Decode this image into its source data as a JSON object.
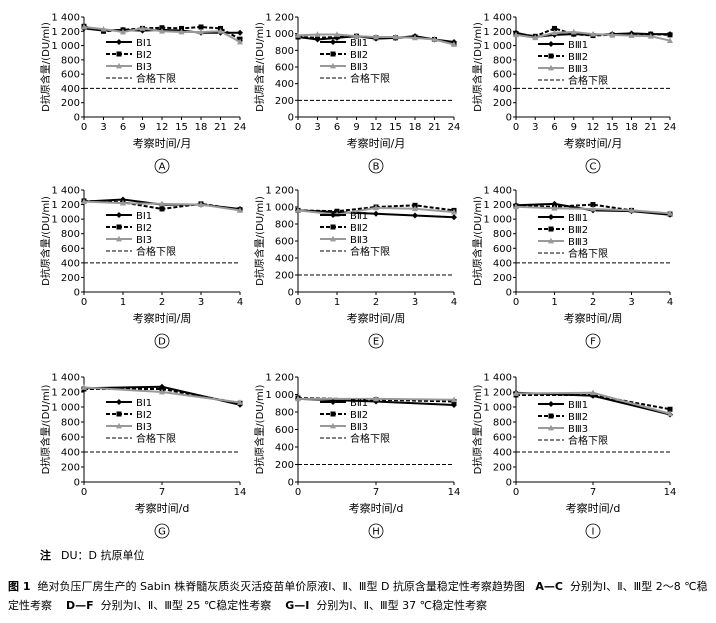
{
  "chart_data": [
    {
      "panel": "A",
      "type": "line",
      "ylabel": "D抗原含量/(DU/ml)",
      "xlabel": "考察时间/月",
      "x": [
        0,
        3,
        6,
        9,
        12,
        15,
        18,
        21,
        24
      ],
      "xticks": [
        0,
        3,
        6,
        9,
        12,
        15,
        18,
        21,
        24
      ],
      "ylim": [
        0,
        1400
      ],
      "yticks": [
        0,
        200,
        400,
        600,
        800,
        1000,
        1200,
        1400
      ],
      "limit": 400,
      "series": [
        {
          "name": "BⅠ1",
          "style": "solid",
          "marker": "diamond",
          "values": [
            1240,
            1210,
            1220,
            1210,
            1220,
            1210,
            1180,
            1180,
            1180
          ]
        },
        {
          "name": "BⅠ2",
          "style": "dashed",
          "marker": "square",
          "values": [
            1270,
            1200,
            1220,
            1240,
            1250,
            1240,
            1260,
            1240,
            1090
          ]
        },
        {
          "name": "BⅠ3",
          "style": "gray",
          "marker": "triangle",
          "values": [
            1260,
            1230,
            1190,
            1240,
            1200,
            1190,
            1190,
            1200,
            1050
          ]
        },
        {
          "name": "合格下限",
          "style": "limit"
        }
      ]
    },
    {
      "panel": "B",
      "type": "line",
      "ylabel": "D抗原含量/(DU/ml)",
      "xlabel": "考察时间/月",
      "x": [
        0,
        3,
        6,
        9,
        12,
        15,
        18,
        21,
        24
      ],
      "xticks": [
        0,
        3,
        6,
        9,
        12,
        15,
        18,
        21,
        24
      ],
      "ylim": [
        0,
        1200
      ],
      "yticks": [
        0,
        200,
        400,
        600,
        800,
        1000,
        1200
      ],
      "limit": 200,
      "series": [
        {
          "name": "BⅡ1",
          "style": "solid",
          "marker": "diamond",
          "values": [
            960,
            930,
            950,
            970,
            940,
            950,
            970,
            930,
            900
          ]
        },
        {
          "name": "BⅡ2",
          "style": "dashed",
          "marker": "square",
          "values": [
            960,
            950,
            960,
            970,
            950,
            950,
            960,
            930,
            880
          ]
        },
        {
          "name": "BⅡ3",
          "style": "gray",
          "marker": "triangle",
          "values": [
            980,
            990,
            990,
            970,
            960,
            960,
            950,
            930,
            870
          ]
        },
        {
          "name": "合格下限",
          "style": "limit"
        }
      ]
    },
    {
      "panel": "C",
      "type": "line",
      "ylabel": "D抗原含量/(DU/ml)",
      "xlabel": "考察时间/月",
      "x": [
        0,
        3,
        6,
        9,
        12,
        15,
        18,
        21,
        24
      ],
      "xticks": [
        0,
        3,
        6,
        9,
        12,
        15,
        18,
        21,
        24
      ],
      "ylim": [
        0,
        1400
      ],
      "yticks": [
        0,
        200,
        400,
        600,
        800,
        1000,
        1200,
        1400
      ],
      "limit": 400,
      "series": [
        {
          "name": "BⅢ1",
          "style": "solid",
          "marker": "diamond",
          "values": [
            1180,
            1120,
            1150,
            1160,
            1150,
            1160,
            1170,
            1160,
            1160
          ]
        },
        {
          "name": "BⅢ2",
          "style": "dashed",
          "marker": "square",
          "values": [
            1170,
            1130,
            1240,
            1160,
            1140,
            1150,
            1150,
            1160,
            1150
          ]
        },
        {
          "name": "BⅢ3",
          "style": "gray",
          "marker": "triangle",
          "values": [
            1150,
            1110,
            1180,
            1190,
            1160,
            1150,
            1140,
            1130,
            1070
          ]
        },
        {
          "name": "合格下限",
          "style": "limit"
        }
      ]
    },
    {
      "panel": "D",
      "type": "line",
      "ylabel": "D抗原含量/(DU/ml)",
      "xlabel": "考察时间/周",
      "x": [
        0,
        1,
        2,
        3,
        4
      ],
      "xticks": [
        0,
        1,
        2,
        3,
        4
      ],
      "ylim": [
        0,
        1400
      ],
      "yticks": [
        0,
        200,
        400,
        600,
        800,
        1000,
        1200,
        1400
      ],
      "limit": 400,
      "series": [
        {
          "name": "BⅠ1",
          "style": "solid",
          "marker": "diamond",
          "values": [
            1240,
            1270,
            1200,
            1200,
            1140
          ]
        },
        {
          "name": "BⅠ2",
          "style": "dashed",
          "marker": "square",
          "values": [
            1250,
            1230,
            1140,
            1210,
            1130
          ]
        },
        {
          "name": "BⅠ3",
          "style": "gray",
          "marker": "triangle",
          "values": [
            1240,
            1220,
            1210,
            1200,
            1120
          ]
        },
        {
          "name": "合格下限",
          "style": "limit"
        }
      ]
    },
    {
      "panel": "E",
      "type": "line",
      "ylabel": "D抗原含量/(DU/ml)",
      "xlabel": "考察时间/周",
      "x": [
        0,
        1,
        2,
        3,
        4
      ],
      "xticks": [
        0,
        1,
        2,
        3,
        4
      ],
      "ylim": [
        0,
        1200
      ],
      "yticks": [
        0,
        200,
        400,
        600,
        800,
        1000,
        1200
      ],
      "limit": 200,
      "series": [
        {
          "name": "BⅡ1",
          "style": "solid",
          "marker": "diamond",
          "values": [
            960,
            940,
            920,
            900,
            880
          ]
        },
        {
          "name": "BⅡ2",
          "style": "dashed",
          "marker": "square",
          "values": [
            960,
            950,
            1000,
            1020,
            960
          ]
        },
        {
          "name": "BⅡ3",
          "style": "gray",
          "marker": "triangle",
          "values": [
            960,
            910,
            990,
            980,
            940
          ]
        },
        {
          "name": "合格下限",
          "style": "limit"
        }
      ]
    },
    {
      "panel": "F",
      "type": "line",
      "ylabel": "D抗原含量/(DU/ml)",
      "xlabel": "考察时间/周",
      "x": [
        0,
        1,
        2,
        3,
        4
      ],
      "xticks": [
        0,
        1,
        2,
        3,
        4
      ],
      "ylim": [
        0,
        1400
      ],
      "yticks": [
        0,
        200,
        400,
        600,
        800,
        1000,
        1200,
        1400
      ],
      "limit": 400,
      "series": [
        {
          "name": "BⅢ1",
          "style": "solid",
          "marker": "diamond",
          "values": [
            1190,
            1210,
            1120,
            1110,
            1060
          ]
        },
        {
          "name": "BⅢ2",
          "style": "dashed",
          "marker": "square",
          "values": [
            1180,
            1170,
            1200,
            1120,
            1070
          ]
        },
        {
          "name": "BⅢ3",
          "style": "gray",
          "marker": "triangle",
          "values": [
            1170,
            1150,
            1140,
            1120,
            1080
          ]
        },
        {
          "name": "合格下限",
          "style": "limit"
        }
      ]
    },
    {
      "panel": "G",
      "type": "line",
      "ylabel": "D抗原含量/(DU/ml)",
      "xlabel": "考察时间/d",
      "x": [
        0,
        7,
        14
      ],
      "xticks": [
        0,
        7,
        14
      ],
      "ylim": [
        0,
        1400
      ],
      "yticks": [
        0,
        200,
        400,
        600,
        800,
        1000,
        1200,
        1400
      ],
      "limit": 400,
      "series": [
        {
          "name": "BⅠ1",
          "style": "solid",
          "marker": "diamond",
          "values": [
            1250,
            1270,
            1030
          ]
        },
        {
          "name": "BⅠ2",
          "style": "dashed",
          "marker": "square",
          "values": [
            1240,
            1240,
            1050
          ]
        },
        {
          "name": "BⅠ3",
          "style": "gray",
          "marker": "triangle",
          "values": [
            1260,
            1200,
            1060
          ]
        },
        {
          "name": "合格下限",
          "style": "limit"
        }
      ]
    },
    {
      "panel": "H",
      "type": "line",
      "ylabel": "D抗原含量/(DU/ml)",
      "xlabel": "考察时间/d",
      "x": [
        0,
        7,
        14
      ],
      "xticks": [
        0,
        7,
        14
      ],
      "ylim": [
        0,
        1200
      ],
      "yticks": [
        0,
        200,
        400,
        600,
        800,
        1000,
        1200
      ],
      "limit": 200,
      "series": [
        {
          "name": "BⅡ1",
          "style": "solid",
          "marker": "diamond",
          "values": [
            950,
            920,
            880
          ]
        },
        {
          "name": "BⅡ2",
          "style": "dashed",
          "marker": "square",
          "values": [
            960,
            940,
            920
          ]
        },
        {
          "name": "BⅡ3",
          "style": "gray",
          "marker": "triangle",
          "values": [
            950,
            950,
            940
          ]
        },
        {
          "name": "合格下限",
          "style": "limit"
        }
      ]
    },
    {
      "panel": "I",
      "type": "line",
      "ylabel": "D抗原含量/(DU/ml)",
      "xlabel": "考察时间/d",
      "x": [
        0,
        7,
        14
      ],
      "xticks": [
        0,
        7,
        14
      ],
      "ylim": [
        0,
        1400
      ],
      "yticks": [
        0,
        200,
        400,
        600,
        800,
        1000,
        1200,
        1400
      ],
      "limit": 400,
      "series": [
        {
          "name": "BⅢ1",
          "style": "solid",
          "marker": "diamond",
          "values": [
            1190,
            1150,
            900
          ]
        },
        {
          "name": "BⅢ2",
          "style": "dashed",
          "marker": "square",
          "values": [
            1160,
            1160,
            970
          ]
        },
        {
          "name": "BⅢ3",
          "style": "gray",
          "marker": "triangle",
          "values": [
            1180,
            1190,
            910
          ]
        },
        {
          "name": "合格下限",
          "style": "limit"
        }
      ]
    }
  ],
  "note": {
    "label": "注",
    "text": "DU：D 抗原单位"
  },
  "caption": {
    "label": "图 1",
    "text": "绝对负压厂房生产的 Sabin 株脊髓灰质炎灭活疫苗单价原液Ⅰ、Ⅱ、Ⅲ型 D 抗原含量稳定性考察趋势图",
    "parts": [
      {
        "key": "A—C",
        "text": "分别为Ⅰ、Ⅱ、Ⅲ型 2～8 ℃稳定性考察"
      },
      {
        "key": "D—F",
        "text": "分别为Ⅰ、Ⅱ、Ⅲ型 25 ℃稳定性考察"
      },
      {
        "key": "G—I",
        "text": "分别为Ⅰ、Ⅱ、Ⅲ型 37 ℃稳定性考察"
      }
    ]
  }
}
